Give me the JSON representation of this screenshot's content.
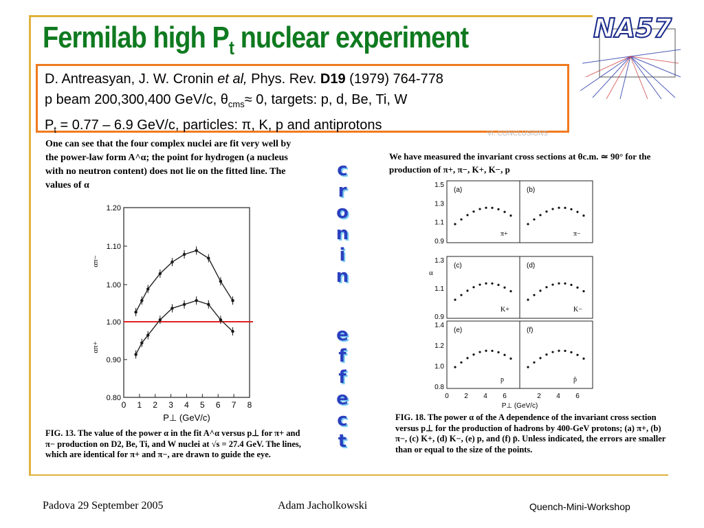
{
  "title": {
    "main": "Fermilab high P",
    "sub": "t",
    "rest": " nuclear experiment"
  },
  "logo": {
    "text": "NA57"
  },
  "reference": {
    "authors": "D. Antreasyan, J. W. Cronin ",
    "etal": "et al,",
    "journal": " Phys. Rev. ",
    "volume": "D19",
    "pages": " (1979) 764-778",
    "line2_a": " p beam 200,300,400 GeV/c, θ",
    "line2_sub": "cms",
    "line2_b": "≈ 0, targets: p, d, Be, Ti, W",
    "line3_a": "P",
    "line3_sub": "t",
    "line3_b": " = 0.77 – 6.9 GeV/c,  particles: π, K, p and antiprotons",
    "hidden_header": "VI.  CONCLUSIONS"
  },
  "scan_left_text": "One can see that the four complex nuclei are fit very well by the power-law form A^α; the point for hydrogen (a nucleus with no neutron content) does not lie on the fitted line. The values of α",
  "scan_right_text": "We have measured the invariant cross sections at θc.m. ≃ 90° for the production of π+, π−, K+, K−, p",
  "caption_left": "FIG. 13. The value of the power α in the fit A^α versus p⊥ for π+ and π− production on D2, Be, Ti, and W nuclei at √s = 27.4 GeV. The lines, which are identical for π+ and π−, are drawn to guide the eye.",
  "caption_right": "FIG. 18. The power α of the A dependence of the invariant cross section versus p⊥ for the production of hadrons by 400-GeV protons; (a) π+, (b) π−, (c) K+, (d) K−, (e) p, and (f) p̄. Unless indicated, the errors are smaller than or equal to the size of the points.",
  "vertical_words": {
    "first": [
      "c",
      "r",
      "o",
      "n",
      "i",
      "n"
    ],
    "second": [
      "e",
      "f",
      "f",
      "e",
      "c",
      "t"
    ]
  },
  "footer": {
    "left": "Padova 29 September 2005",
    "center": "Adam Jacholkowski",
    "right": "Quench-Mini-Workshop"
  },
  "colors": {
    "title": "#0f7a1f",
    "box_border": "#f07a1e",
    "rule": "#e0b23c",
    "word": "#2b3fbf",
    "red_line": "#e02020"
  },
  "chart_data": [
    {
      "type": "scatter",
      "title": "",
      "xlabel": "P⊥ (GeV/c)",
      "ylabel_upper": "απ−",
      "ylabel_lower": "απ+",
      "xlim": [
        0,
        8
      ],
      "x_ticks": [
        "0",
        "1",
        "2",
        "3",
        "4",
        "5",
        "6",
        "7",
        "8"
      ],
      "y_ticks": [
        "0.80",
        "0.90",
        "1.00",
        "1.00",
        "1.10",
        "1.20"
      ],
      "reference_line": 1.0,
      "series": [
        {
          "x": [
            0.77,
            1.15,
            1.54,
            2.31,
            3.08,
            3.85,
            4.62,
            5.39,
            6.16,
            6.93
          ],
          "y": [
            1.0,
            1.03,
            1.06,
            1.1,
            1.13,
            1.15,
            1.16,
            1.14,
            1.08,
            1.03
          ]
        },
        {
          "x": [
            0.77,
            1.15,
            1.54,
            2.31,
            3.08,
            3.85,
            4.62,
            5.39,
            6.16,
            6.93
          ],
          "y": [
            0.89,
            0.92,
            0.94,
            0.98,
            1.01,
            1.02,
            1.03,
            1.02,
            0.98,
            0.95
          ]
        }
      ]
    },
    {
      "type": "scatter",
      "xlabel": "P⊥ (GeV/c)",
      "ylabel": "α",
      "xlim": [
        0,
        8
      ],
      "x_ticks": [
        "0",
        "2",
        "4",
        "6",
        "2",
        "4",
        "6"
      ],
      "panels": [
        {
          "label": "(a)",
          "particle": "π+",
          "y_ticks": [
            "1.5",
            "1.3",
            "1.1",
            "0.9"
          ]
        },
        {
          "label": "(b)",
          "particle": "π−"
        },
        {
          "label": "(c)",
          "particle": "K+",
          "y_ticks": [
            "1.3",
            "1.1",
            "0.9"
          ]
        },
        {
          "label": "(d)",
          "particle": "K−"
        },
        {
          "label": "(e)",
          "particle": "p",
          "y_ticks": [
            "1.4",
            "1.2",
            "1.0",
            "0.8"
          ]
        },
        {
          "label": "(f)",
          "particle": "p̄"
        }
      ]
    }
  ]
}
